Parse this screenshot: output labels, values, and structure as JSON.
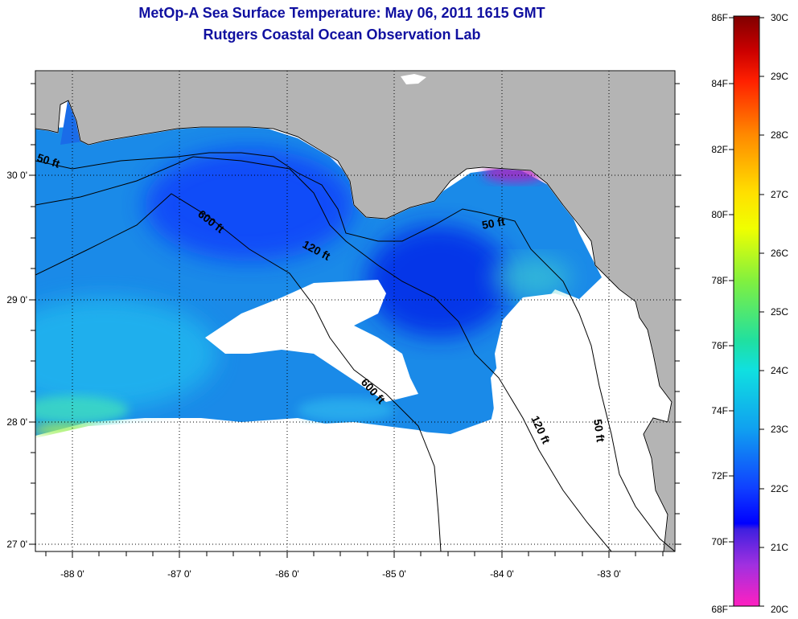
{
  "header": {
    "title": "MetOp-A Sea Surface Temperature:  May 06, 2011 1615 GMT",
    "subtitle": "Rutgers Coastal Ocean Observation Lab"
  },
  "map": {
    "lon_ticks": [
      "-88 0'",
      "-87 0'",
      "-86 0'",
      "-85 0'",
      "-84 0'",
      "-83 0'"
    ],
    "lat_ticks": [
      "30 0'",
      "29 0'",
      "28 0'",
      "27 0'"
    ],
    "contour_labels": [
      "50 ft",
      "600 ft",
      "120 ft",
      "50 ft",
      "600 ft",
      "120 ft",
      "50 ft"
    ],
    "colors": {
      "land": "#b4b4b4",
      "cloud": "#ffffff",
      "contour": "#000000"
    }
  },
  "colorbar": {
    "fahrenheit": [
      "86F",
      "84F",
      "82F",
      "80F",
      "78F",
      "76F",
      "74F",
      "72F",
      "70F",
      "68F"
    ],
    "celsius": [
      "30C",
      "29C",
      "28C",
      "27C",
      "26C",
      "25C",
      "24C",
      "23C",
      "22C",
      "21C",
      "20C"
    ]
  }
}
